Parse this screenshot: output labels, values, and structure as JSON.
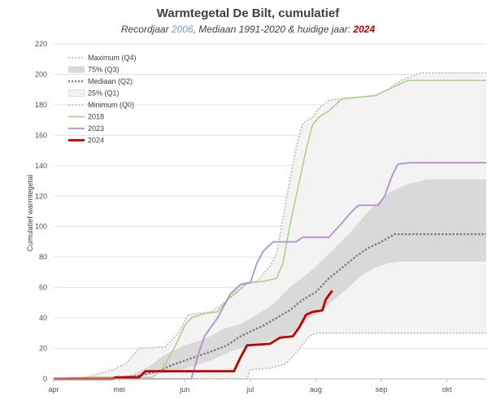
{
  "chart_data": {
    "type": "line",
    "title": "Warmtegetal De Bilt, cumulatief",
    "subtitle": {
      "prefix": "Recordjaar ",
      "record_year": "2006",
      "middle": ", Mediaan 1991-2020 & huidige jaar: ",
      "current_year": "2024"
    },
    "ylabel": "Cumulatief warmtegetal",
    "xlabel": "",
    "ylim": [
      0,
      220
    ],
    "yticks": [
      0,
      20,
      40,
      60,
      80,
      100,
      120,
      140,
      160,
      180,
      200,
      220
    ],
    "xlim": [
      0,
      6.6
    ],
    "xticks": [
      {
        "label": "apr",
        "x": 0
      },
      {
        "label": "mei",
        "x": 1
      },
      {
        "label": "jun",
        "x": 2
      },
      {
        "label": "jul",
        "x": 3
      },
      {
        "label": "aug",
        "x": 4
      },
      {
        "label": "sep",
        "x": 5
      },
      {
        "label": "okt",
        "x": 6
      }
    ],
    "grid": "horizontal",
    "legend_position": "top-left",
    "legend": [
      {
        "label": "Maximum (Q4)",
        "style": "dotted",
        "color": "#bfbfbf"
      },
      {
        "label": "75% (Q3)",
        "style": "band-dark",
        "color": "#d9d9d9"
      },
      {
        "label": "Mediaan (Q2)",
        "style": "dotted-bold",
        "color": "#7f7f7f"
      },
      {
        "label": "25% (Q1)",
        "style": "band-light",
        "color": "#f2f2f2"
      },
      {
        "label": "Minimum (Q0)",
        "style": "dotted",
        "color": "#bfbfbf"
      },
      {
        "label": "2018",
        "style": "line",
        "color": "#a9d18e"
      },
      {
        "label": "2023",
        "style": "line",
        "color": "#b18ed1"
      },
      {
        "label": "2024",
        "style": "line-bold",
        "color": "#c00000"
      }
    ],
    "series": [
      {
        "name": "Maximum (Q4)",
        "color": "#bfbfbf",
        "points": [
          [
            0,
            0
          ],
          [
            0.5,
            1
          ],
          [
            0.9,
            6
          ],
          [
            1.1,
            10
          ],
          [
            1.3,
            20
          ],
          [
            1.7,
            21
          ],
          [
            1.9,
            30
          ],
          [
            2.05,
            42
          ],
          [
            2.2,
            43
          ],
          [
            2.4,
            44
          ],
          [
            2.6,
            50
          ],
          [
            2.9,
            63
          ],
          [
            3.1,
            64
          ],
          [
            3.3,
            74
          ],
          [
            3.4,
            82
          ],
          [
            3.55,
            118
          ],
          [
            3.7,
            152
          ],
          [
            3.8,
            168
          ],
          [
            3.95,
            172
          ],
          [
            4.05,
            178
          ],
          [
            4.2,
            183
          ],
          [
            4.4,
            184
          ],
          [
            4.9,
            186
          ],
          [
            5.1,
            190
          ],
          [
            5.3,
            196
          ],
          [
            5.6,
            201
          ],
          [
            6.6,
            201
          ]
        ]
      },
      {
        "name": "75% (Q3)",
        "color": "#d9d9d9",
        "points": [
          [
            0,
            0
          ],
          [
            1.0,
            1
          ],
          [
            1.2,
            3
          ],
          [
            1.45,
            8
          ],
          [
            1.7,
            16
          ],
          [
            2.0,
            22
          ],
          [
            2.3,
            26
          ],
          [
            2.6,
            33
          ],
          [
            2.85,
            36
          ],
          [
            3.1,
            42
          ],
          [
            3.35,
            49
          ],
          [
            3.6,
            60
          ],
          [
            3.9,
            70
          ],
          [
            4.2,
            82
          ],
          [
            4.5,
            95
          ],
          [
            4.8,
            110
          ],
          [
            5.1,
            122
          ],
          [
            5.4,
            128
          ],
          [
            5.7,
            131
          ],
          [
            6.6,
            131
          ]
        ]
      },
      {
        "name": "Mediaan (Q2)",
        "color": "#7f7f7f",
        "points": [
          [
            0,
            0
          ],
          [
            1.0,
            1
          ],
          [
            1.3,
            2
          ],
          [
            1.6,
            5
          ],
          [
            1.8,
            9
          ],
          [
            2.0,
            12
          ],
          [
            2.2,
            15
          ],
          [
            2.4,
            18
          ],
          [
            2.65,
            22
          ],
          [
            2.85,
            28
          ],
          [
            3.0,
            31
          ],
          [
            3.2,
            35
          ],
          [
            3.4,
            40
          ],
          [
            3.6,
            45
          ],
          [
            3.8,
            52
          ],
          [
            4.0,
            57
          ],
          [
            4.2,
            66
          ],
          [
            4.4,
            73
          ],
          [
            4.6,
            80
          ],
          [
            4.8,
            86
          ],
          [
            5.0,
            90
          ],
          [
            5.2,
            95
          ],
          [
            6.6,
            95
          ]
        ]
      },
      {
        "name": "25% (Q1)",
        "color": "#f2f2f2",
        "points": [
          [
            0,
            0
          ],
          [
            1.1,
            1
          ],
          [
            1.5,
            3
          ],
          [
            1.8,
            4
          ],
          [
            2.1,
            8
          ],
          [
            2.4,
            12
          ],
          [
            2.7,
            18
          ],
          [
            3.0,
            22
          ],
          [
            3.3,
            25
          ],
          [
            3.5,
            28
          ],
          [
            3.7,
            32
          ],
          [
            3.9,
            40
          ],
          [
            4.1,
            45
          ],
          [
            4.3,
            53
          ],
          [
            4.5,
            60
          ],
          [
            4.7,
            68
          ],
          [
            4.9,
            73
          ],
          [
            5.1,
            76
          ],
          [
            5.3,
            77
          ],
          [
            6.6,
            77
          ]
        ]
      },
      {
        "name": "Minimum (Q0)",
        "color": "#bfbfbf",
        "points": [
          [
            0,
            0
          ],
          [
            2.95,
            0
          ],
          [
            3.0,
            6
          ],
          [
            3.3,
            7
          ],
          [
            3.55,
            10
          ],
          [
            3.75,
            20
          ],
          [
            3.9,
            28
          ],
          [
            4.0,
            30
          ],
          [
            6.6,
            30
          ]
        ]
      },
      {
        "name": "2018",
        "color": "#a9d18e",
        "points": [
          [
            0,
            0
          ],
          [
            0.5,
            1
          ],
          [
            0.9,
            1
          ],
          [
            1.5,
            1
          ],
          [
            1.65,
            6
          ],
          [
            1.85,
            21
          ],
          [
            2.0,
            35
          ],
          [
            2.1,
            40
          ],
          [
            2.3,
            43
          ],
          [
            2.5,
            44
          ],
          [
            2.65,
            52
          ],
          [
            2.8,
            57
          ],
          [
            2.95,
            63
          ],
          [
            3.2,
            64
          ],
          [
            3.4,
            66
          ],
          [
            3.5,
            76
          ],
          [
            3.6,
            100
          ],
          [
            3.75,
            130
          ],
          [
            3.85,
            150
          ],
          [
            3.95,
            167
          ],
          [
            4.05,
            172
          ],
          [
            4.2,
            176
          ],
          [
            4.4,
            184
          ],
          [
            4.9,
            186
          ],
          [
            5.1,
            190
          ],
          [
            5.4,
            196
          ],
          [
            6.6,
            196
          ]
        ]
      },
      {
        "name": "2023",
        "color": "#b18ed1",
        "points": [
          [
            0,
            0
          ],
          [
            2.0,
            0
          ],
          [
            2.1,
            0
          ],
          [
            2.2,
            15
          ],
          [
            2.3,
            28
          ],
          [
            2.5,
            40
          ],
          [
            2.7,
            56
          ],
          [
            2.85,
            62
          ],
          [
            3.0,
            63
          ],
          [
            3.1,
            76
          ],
          [
            3.2,
            84
          ],
          [
            3.35,
            90
          ],
          [
            3.7,
            90
          ],
          [
            3.8,
            93
          ],
          [
            4.2,
            93
          ],
          [
            4.35,
            100
          ],
          [
            4.55,
            110
          ],
          [
            4.65,
            114
          ],
          [
            4.95,
            114
          ],
          [
            5.05,
            120
          ],
          [
            5.15,
            132
          ],
          [
            5.25,
            141
          ],
          [
            5.45,
            142
          ],
          [
            6.6,
            142
          ]
        ]
      },
      {
        "name": "2024",
        "color": "#c00000",
        "points": [
          [
            0,
            0
          ],
          [
            0.9,
            0
          ],
          [
            0.95,
            1
          ],
          [
            1.3,
            1
          ],
          [
            1.4,
            5
          ],
          [
            1.5,
            5
          ],
          [
            2.75,
            5
          ],
          [
            2.85,
            14
          ],
          [
            2.95,
            22
          ],
          [
            3.3,
            23
          ],
          [
            3.45,
            27
          ],
          [
            3.65,
            28
          ],
          [
            3.75,
            34
          ],
          [
            3.85,
            42
          ],
          [
            3.95,
            44
          ],
          [
            4.1,
            45
          ],
          [
            4.15,
            52
          ],
          [
            4.2,
            55
          ],
          [
            4.25,
            58
          ]
        ]
      }
    ]
  }
}
